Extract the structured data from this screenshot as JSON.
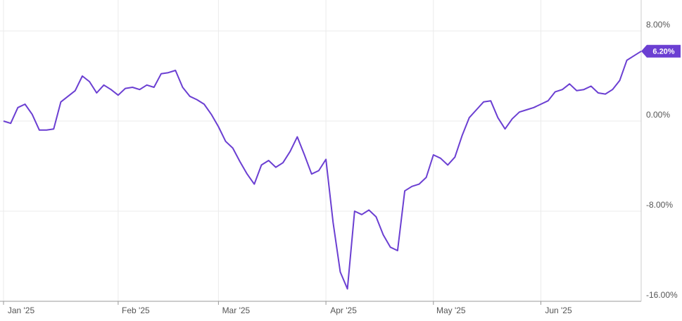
{
  "chart_data": {
    "type": "line",
    "categories": [
      "Jan '25",
      null,
      null,
      null,
      null,
      null,
      null,
      null,
      null,
      null,
      null,
      null,
      null,
      null,
      null,
      null,
      "Feb '25",
      null,
      null,
      null,
      null,
      null,
      null,
      null,
      null,
      null,
      null,
      null,
      null,
      null,
      "Mar '25",
      null,
      null,
      null,
      null,
      null,
      null,
      null,
      null,
      null,
      null,
      null,
      null,
      null,
      null,
      "Apr '25",
      null,
      null,
      null,
      null,
      null,
      null,
      null,
      null,
      null,
      null,
      null,
      null,
      null,
      null,
      "May '25",
      null,
      null,
      null,
      null,
      null,
      null,
      null,
      null,
      null,
      null,
      null,
      null,
      null,
      null,
      "Jun '25",
      null,
      null,
      null,
      null,
      null,
      null,
      null,
      null,
      null,
      null,
      null,
      null,
      null,
      null
    ],
    "series": [
      {
        "color": "#6b3fd2",
        "values": [
          0,
          -0.2,
          1.2,
          1.5,
          0.6,
          -0.8,
          -0.8,
          -0.7,
          1.7,
          2.2,
          2.7,
          4.0,
          3.5,
          2.5,
          3.2,
          2.8,
          2.3,
          2.9,
          3.0,
          2.8,
          3.2,
          3.0,
          4.2,
          4.3,
          4.5,
          3.0,
          2.2,
          1.9,
          1.5,
          0.6,
          -0.5,
          -1.8,
          -2.4,
          -3.6,
          -4.7,
          -5.6,
          -3.9,
          -3.5,
          -4.1,
          -3.7,
          -2.7,
          -1.4,
          -3.0,
          -4.7,
          -4.4,
          -3.4,
          -9.0,
          -13.4,
          -14.9,
          -8.0,
          -8.3,
          -7.9,
          -8.5,
          -10.1,
          -11.2,
          -11.5,
          -6.2,
          -5.8,
          -5.6,
          -5.0,
          -3.0,
          -3.3,
          -3.9,
          -3.2,
          -1.3,
          0.3,
          1.0,
          1.7,
          1.8,
          0.3,
          -0.7,
          0.2,
          0.8,
          1.0,
          1.2,
          1.5,
          1.8,
          2.6,
          2.8,
          3.3,
          2.7,
          2.8,
          3.1,
          2.5,
          2.4,
          2.8,
          3.6,
          5.4,
          5.8,
          6.2
        ],
        "value_labels": [
          null,
          null,
          null,
          null,
          null,
          null,
          null,
          null,
          null,
          null,
          null,
          null,
          null,
          null,
          null,
          null,
          null,
          null,
          null,
          null,
          null,
          null,
          null,
          null,
          null,
          null,
          null,
          null,
          null,
          null,
          null,
          null,
          null,
          null,
          null,
          null,
          null,
          null,
          null,
          null,
          null,
          null,
          null,
          null,
          null,
          null,
          null,
          null,
          null,
          null,
          null,
          null,
          null,
          null,
          null,
          null,
          null,
          null,
          null,
          null,
          null,
          null,
          null,
          null,
          null,
          null,
          null,
          null,
          null,
          null,
          null,
          null,
          null,
          null,
          null,
          null,
          null,
          null,
          null,
          null,
          null,
          null,
          null,
          null,
          null,
          null,
          null,
          null,
          null,
          "6.20%"
        ]
      }
    ],
    "ylim": [
      -16,
      10.75
    ],
    "yticks": [
      {
        "value": 8,
        "label": "8.00%"
      },
      {
        "value": 0,
        "label": "0.00%"
      },
      {
        "value": -8,
        "label": "-8.00%"
      },
      {
        "value": -16,
        "label": "-16.00%"
      }
    ],
    "grid": true
  }
}
